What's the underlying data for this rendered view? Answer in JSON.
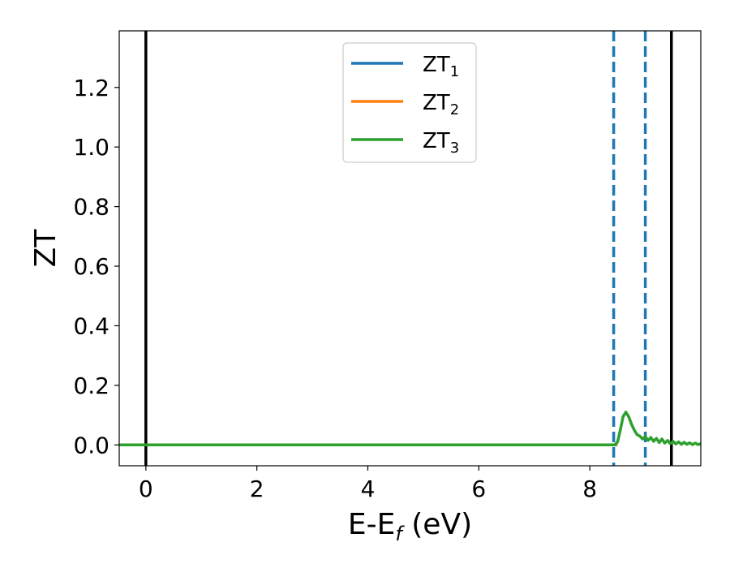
{
  "chart_data": {
    "type": "line",
    "xlabel": "E-E",
    "xlabel_sub": "f",
    "xlabel_unit": " (eV)",
    "ylabel": "ZT",
    "xlim": [
      -0.48,
      10.0
    ],
    "ylim": [
      -0.07,
      1.39
    ],
    "xticks": [
      0,
      2,
      4,
      6,
      8
    ],
    "xtick_labels": [
      "0",
      "2",
      "4",
      "6",
      "8"
    ],
    "yticks": [
      0.0,
      0.2,
      0.4,
      0.6,
      0.8,
      1.0,
      1.2
    ],
    "ytick_labels": [
      "0.0",
      "0.2",
      "0.4",
      "0.6",
      "0.8",
      "1.0",
      "1.2"
    ],
    "grid": false,
    "legend_position": "top-center",
    "series": [
      {
        "name": "ZT",
        "name_sub": "1",
        "color": "#1f77b4",
        "x": [
          -0.48,
          8.4,
          8.5
        ],
        "y": [
          0.0,
          0.0,
          0.0
        ]
      },
      {
        "name": "ZT",
        "name_sub": "2",
        "color": "#ff7f0e",
        "x": [
          -0.48,
          8.4,
          8.5
        ],
        "y": [
          0.0,
          0.0,
          0.0
        ]
      },
      {
        "name": "ZT",
        "name_sub": "3",
        "color": "#2ca02c",
        "x": [
          -0.48,
          8.4,
          8.45,
          8.5,
          8.55,
          8.6,
          8.65,
          8.7,
          8.75,
          8.8,
          8.85,
          8.9,
          8.95,
          9.0,
          9.05,
          9.1,
          9.15,
          9.2,
          9.25,
          9.3,
          9.35,
          9.4,
          9.45,
          9.5,
          9.55,
          9.6,
          9.65,
          9.7,
          9.75,
          9.8,
          9.85,
          9.9,
          9.95,
          10.0
        ],
        "y": [
          0.0,
          0.0,
          0.0,
          0.01,
          0.05,
          0.095,
          0.11,
          0.095,
          0.07,
          0.05,
          0.035,
          0.03,
          0.02,
          0.028,
          0.015,
          0.025,
          0.012,
          0.022,
          0.008,
          0.02,
          0.006,
          0.015,
          0.004,
          0.012,
          0.003,
          0.01,
          0.002,
          0.009,
          0.002,
          0.007,
          0.001,
          0.006,
          0.001,
          0.004
        ]
      }
    ],
    "vlines": [
      {
        "x": 0.0,
        "style": "solid",
        "color": "#000000"
      },
      {
        "x": 9.47,
        "style": "solid",
        "color": "#000000"
      },
      {
        "x": 8.43,
        "style": "dashed",
        "color": "#1f77b4"
      },
      {
        "x": 9.0,
        "style": "dashed",
        "color": "#1f77b4"
      }
    ]
  }
}
